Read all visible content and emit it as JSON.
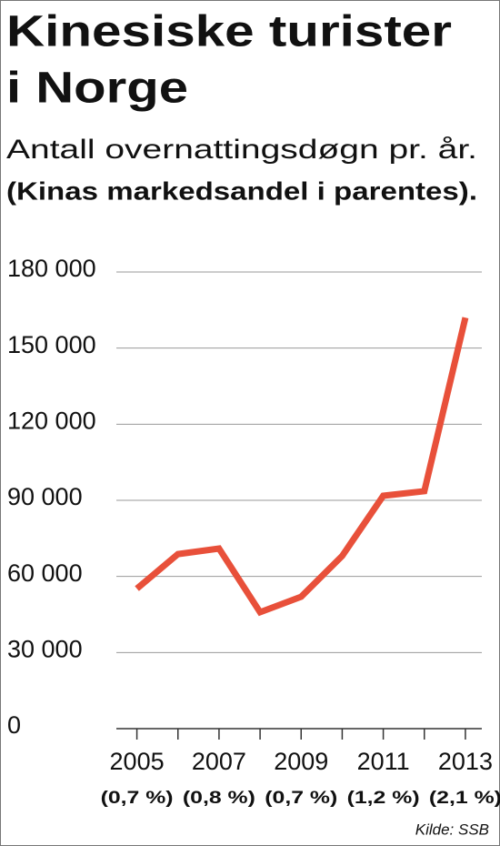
{
  "chart_data": {
    "type": "line",
    "title": [
      "Kinesiske turister",
      "i Norge"
    ],
    "subtitle": "Antall overnattingsdøgn pr. år.",
    "note": "(Kinas markedsandel i parentes).",
    "source": "Kilde: SSB",
    "x": [
      2005,
      2006,
      2007,
      2008,
      2009,
      2010,
      2011,
      2012,
      2013
    ],
    "series": [
      {
        "name": "Overnattingsdøgn",
        "color": "#e8503a",
        "values": [
          55200,
          68800,
          71000,
          45900,
          52000,
          68100,
          91800,
          93600,
          162000
        ]
      }
    ],
    "xlim": [
      2004.5,
      2013.4
    ],
    "xticks": [
      2005,
      2007,
      2009,
      2011,
      2013
    ],
    "x_minor_ticks": [
      2006,
      2008,
      2010,
      2012
    ],
    "x_tick_sublabels": [
      "(0,7 %)",
      "(0,8 %)",
      "(0,7 %)",
      "(1,2 %)",
      "(2,1 %)"
    ],
    "ylim": [
      0,
      180000
    ],
    "yticks": [
      0,
      {
        "value": 30000,
        "label": "30 000"
      },
      {
        "value": 60000,
        "label": "60 000"
      },
      {
        "value": 90000,
        "label": "90 000"
      },
      {
        "value": 120000,
        "label": "120 000"
      },
      {
        "value": 150000,
        "label": "150 000"
      },
      {
        "value": 180000,
        "label": "180 000"
      }
    ],
    "grid": true
  }
}
